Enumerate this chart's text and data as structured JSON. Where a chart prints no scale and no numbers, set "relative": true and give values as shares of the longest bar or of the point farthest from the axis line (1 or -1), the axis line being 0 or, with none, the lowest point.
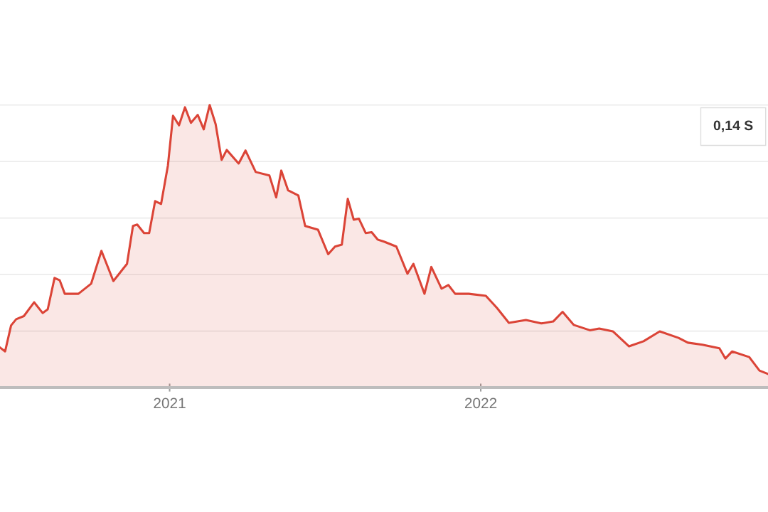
{
  "chart_data": {
    "type": "area",
    "relative": true,
    "grid": "y",
    "tick_labels": "x",
    "legend": false,
    "xlim": [
      "2020-06-16",
      "2022-12-04"
    ],
    "xticks": [
      {
        "value": "2021-01-01",
        "label": "2021"
      },
      {
        "value": "2022-01-01",
        "label": "2022"
      }
    ],
    "annotations": [
      "0,14 S"
    ],
    "series": [
      {
        "color": "#db4437",
        "x": [
          "2020-06-16",
          "2020-06-22",
          "2020-06-29",
          "2020-07-05",
          "2020-07-14",
          "2020-07-26",
          "2020-08-05",
          "2020-08-11",
          "2020-08-19",
          "2020-08-25",
          "2020-08-31",
          "2020-09-16",
          "2020-10-01",
          "2020-10-13",
          "2020-10-27",
          "2020-11-12",
          "2020-11-19",
          "2020-11-24",
          "2020-12-02",
          "2020-12-08",
          "2020-12-15",
          "2020-12-22",
          "2020-12-30",
          "2021-01-05",
          "2021-01-12",
          "2021-01-19",
          "2021-01-26",
          "2021-02-03",
          "2021-02-10",
          "2021-02-17",
          "2021-02-24",
          "2021-03-03",
          "2021-03-09",
          "2021-03-23",
          "2021-03-31",
          "2021-04-12",
          "2021-04-28",
          "2021-05-06",
          "2021-05-12",
          "2021-05-20",
          "2021-06-01",
          "2021-06-09",
          "2021-06-24",
          "2021-07-06",
          "2021-07-14",
          "2021-07-22",
          "2021-07-29",
          "2021-08-05",
          "2021-08-11",
          "2021-08-19",
          "2021-08-26",
          "2021-09-02",
          "2021-09-10",
          "2021-09-24",
          "2021-10-07",
          "2021-10-14",
          "2021-10-27",
          "2021-11-04",
          "2021-11-16",
          "2021-11-24",
          "2021-12-02",
          "2021-12-18",
          "2022-01-07",
          "2022-01-20",
          "2022-02-03",
          "2022-02-23",
          "2022-03-13",
          "2022-03-27",
          "2022-04-07",
          "2022-04-20",
          "2022-05-09",
          "2022-05-20",
          "2022-06-05",
          "2022-06-24",
          "2022-07-11",
          "2022-07-30",
          "2022-08-21",
          "2022-09-01",
          "2022-09-18",
          "2022-10-08",
          "2022-10-15",
          "2022-10-23",
          "2022-11-12",
          "2022-11-24",
          "2022-12-04"
        ],
        "values": [
          0.142,
          0.128,
          0.22,
          0.242,
          0.253,
          0.302,
          0.264,
          0.277,
          0.388,
          0.38,
          0.332,
          0.332,
          0.368,
          0.484,
          0.377,
          0.438,
          0.572,
          0.577,
          0.547,
          0.547,
          0.66,
          0.65,
          0.786,
          0.962,
          0.928,
          0.992,
          0.937,
          0.965,
          0.914,
          1.0,
          0.932,
          0.806,
          0.841,
          0.793,
          0.839,
          0.763,
          0.751,
          0.673,
          0.768,
          0.698,
          0.68,
          0.572,
          0.559,
          0.472,
          0.499,
          0.506,
          0.668,
          0.594,
          0.598,
          0.547,
          0.55,
          0.524,
          0.516,
          0.499,
          0.403,
          0.438,
          0.332,
          0.427,
          0.35,
          0.363,
          0.332,
          0.332,
          0.325,
          0.282,
          0.229,
          0.239,
          0.227,
          0.234,
          0.268,
          0.222,
          0.203,
          0.209,
          0.199,
          0.146,
          0.164,
          0.199,
          0.176,
          0.159,
          0.152,
          0.139,
          0.103,
          0.128,
          0.108,
          0.06,
          0.048
        ]
      }
    ]
  }
}
